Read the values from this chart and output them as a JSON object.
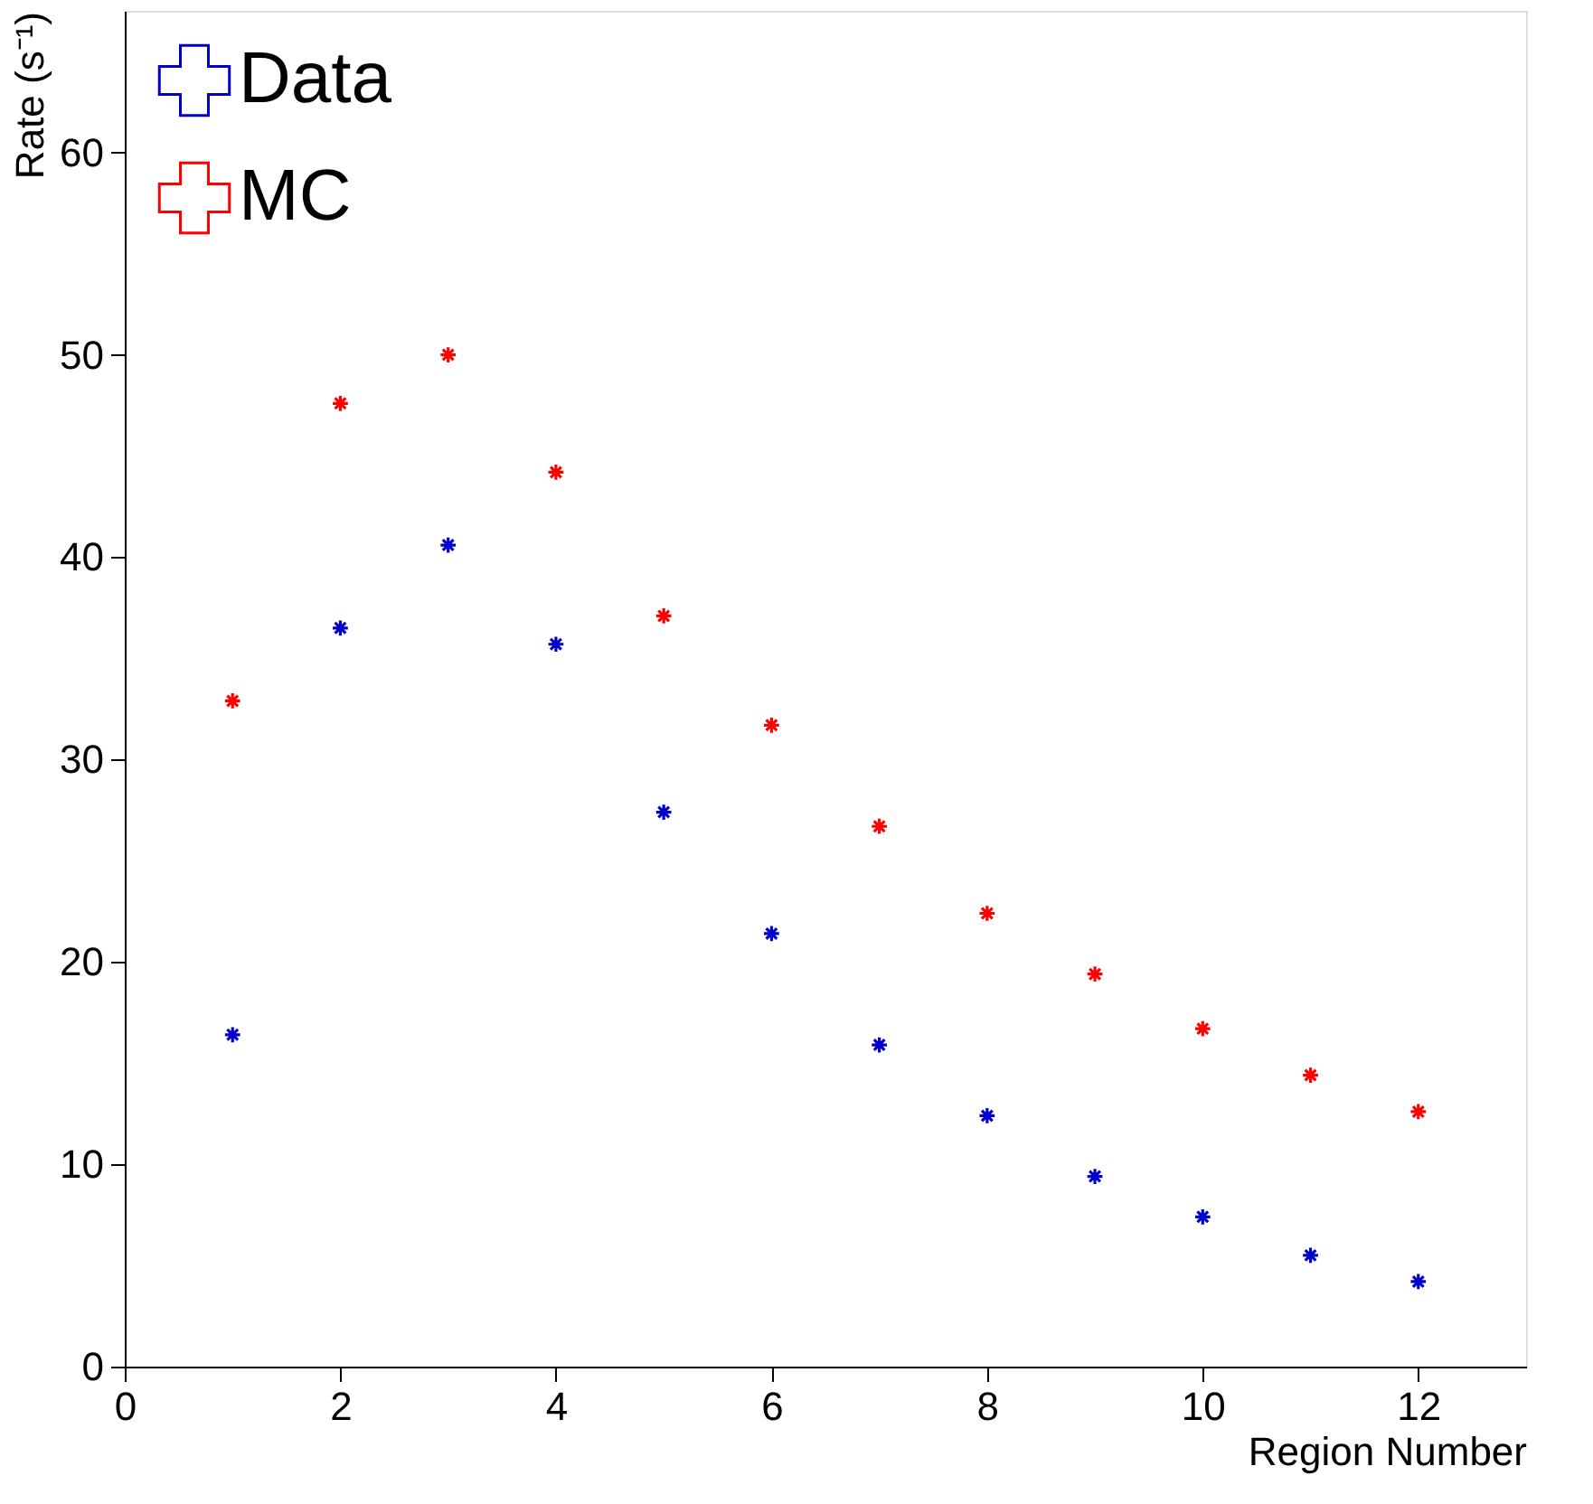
{
  "chart_data": {
    "type": "scatter",
    "xlabel": "Region Number",
    "ylabel": "Rate (s⁻¹)",
    "x": [
      1,
      2,
      3,
      4,
      5,
      6,
      7,
      8,
      9,
      10,
      11,
      12
    ],
    "series": [
      {
        "name": "Data",
        "color": "#0000cc",
        "values": [
          16.4,
          36.5,
          40.6,
          35.7,
          27.4,
          21.4,
          15.9,
          12.4,
          9.4,
          7.4,
          5.5,
          4.2
        ]
      },
      {
        "name": "MC",
        "color": "#ff0000",
        "values": [
          32.9,
          47.6,
          50.0,
          44.2,
          37.1,
          31.7,
          26.7,
          22.4,
          19.4,
          16.7,
          14.4,
          12.6
        ]
      }
    ],
    "xlim": [
      0,
      13
    ],
    "xticks": [
      0,
      2,
      4,
      6,
      8,
      10,
      12
    ],
    "ylim": [
      0,
      67
    ],
    "yticks": [
      0,
      10,
      20,
      30,
      40,
      50,
      60
    ],
    "marker": "cross",
    "legend": "top left",
    "grid": false
  }
}
